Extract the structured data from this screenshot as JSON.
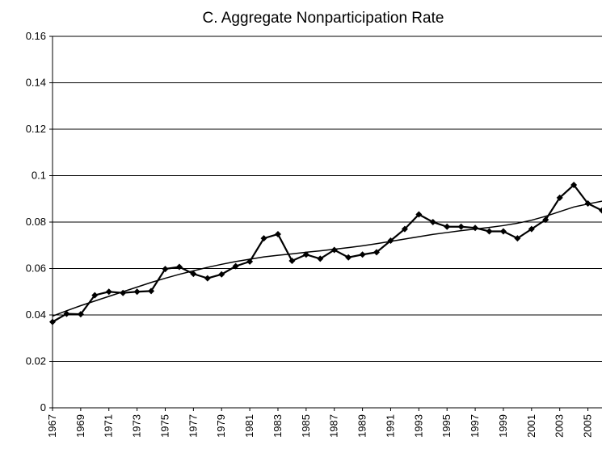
{
  "chart_data": {
    "type": "line",
    "title": "C. Aggregate Nonparticipation Rate",
    "x": [
      1967,
      1968,
      1969,
      1970,
      1971,
      1972,
      1973,
      1974,
      1975,
      1976,
      1977,
      1978,
      1979,
      1980,
      1981,
      1982,
      1983,
      1984,
      1985,
      1986,
      1987,
      1988,
      1989,
      1990,
      1991,
      1992,
      1993,
      1994,
      1995,
      1996,
      1997,
      1998,
      1999,
      2000,
      2001,
      2002,
      2003,
      2004,
      2005,
      2006
    ],
    "series": [
      {
        "color": "#000000",
        "markers": true,
        "values": [
          0.037,
          0.0405,
          0.0403,
          0.0485,
          0.05,
          0.0495,
          0.05,
          0.0503,
          0.0598,
          0.0607,
          0.0577,
          0.0558,
          0.0575,
          0.061,
          0.063,
          0.073,
          0.0748,
          0.0633,
          0.066,
          0.0642,
          0.068,
          0.0648,
          0.066,
          0.067,
          0.072,
          0.077,
          0.0833,
          0.08,
          0.078,
          0.078,
          0.0775,
          0.076,
          0.076,
          0.073,
          0.077,
          0.081,
          0.0905,
          0.096,
          0.088,
          0.085
        ]
      },
      {
        "color": "#000000",
        "markers": false,
        "values": [
          0.0395,
          0.0418,
          0.044,
          0.046,
          0.048,
          0.05,
          0.052,
          0.054,
          0.0558,
          0.0575,
          0.059,
          0.0605,
          0.0618,
          0.063,
          0.064,
          0.065,
          0.0657,
          0.0663,
          0.067,
          0.0676,
          0.0683,
          0.069,
          0.0698,
          0.0707,
          0.0717,
          0.0727,
          0.0737,
          0.0747,
          0.0755,
          0.0763,
          0.077,
          0.0777,
          0.0785,
          0.0795,
          0.0808,
          0.0825,
          0.0845,
          0.0865,
          0.0878,
          0.089
        ]
      }
    ],
    "xlim": [
      1967,
      2006
    ],
    "xticks": [
      1967,
      1969,
      1971,
      1973,
      1975,
      1977,
      1979,
      1981,
      1983,
      1985,
      1987,
      1989,
      1991,
      1993,
      1995,
      1997,
      1999,
      2001,
      2003,
      2005
    ],
    "ylim": [
      0,
      0.16
    ],
    "yticks": [
      0,
      0.02,
      0.04,
      0.06,
      0.08,
      0.1,
      0.12,
      0.14,
      0.16
    ],
    "grid": true
  }
}
